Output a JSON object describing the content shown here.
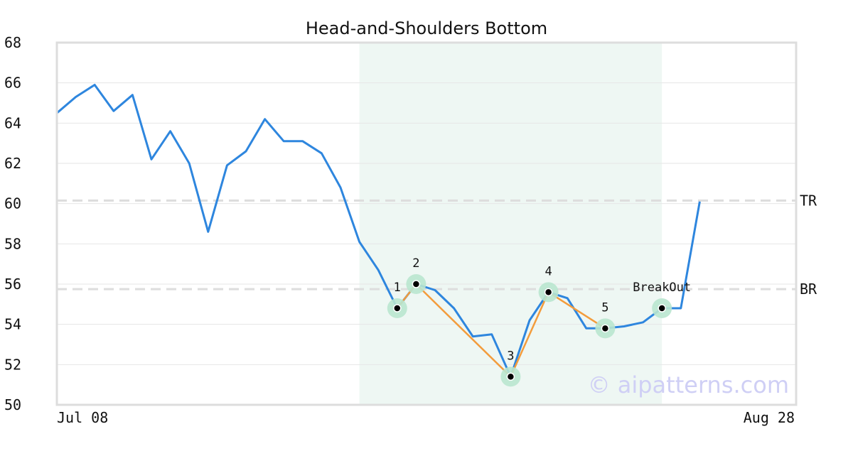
{
  "chart_data": {
    "type": "line",
    "title": "Head-and-Shoulders Bottom",
    "xlabel": "",
    "ylabel": "",
    "ylim": [
      50,
      68
    ],
    "y_ticks": [
      50,
      52,
      54,
      56,
      58,
      60,
      62,
      64,
      66,
      68
    ],
    "x_tick_labels": [
      "Jul 08",
      "Aug 28"
    ],
    "grid": true,
    "series": [
      {
        "color": "#2e86de",
        "values": [
          64.5,
          65.3,
          65.9,
          64.6,
          65.4,
          62.2,
          63.6,
          62.0,
          58.6,
          61.9,
          62.6,
          64.2,
          63.1,
          63.1,
          62.5,
          60.8,
          58.1,
          56.7,
          54.8,
          56.0,
          55.7,
          54.8,
          53.4,
          53.5,
          51.4,
          54.2,
          55.6,
          55.3,
          53.8,
          53.8,
          53.9,
          54.1,
          54.8,
          54.8,
          60.1
        ]
      }
    ],
    "shaded_region": {
      "from_index": 16,
      "to_index": 32,
      "color": "#eef7f3"
    },
    "horizontal_lines": [
      {
        "label": "TR",
        "value": 60.15
      },
      {
        "label": "BR",
        "value": 55.75
      }
    ],
    "pattern_points": [
      {
        "label": "1",
        "index": 18,
        "value": 54.8
      },
      {
        "label": "2",
        "index": 19,
        "value": 56.0
      },
      {
        "label": "3",
        "index": 24,
        "value": 51.4
      },
      {
        "label": "4",
        "index": 26,
        "value": 55.6
      },
      {
        "label": "5",
        "index": 29,
        "value": 53.8
      },
      {
        "label": "BreakOut",
        "index": 32,
        "value": 54.8
      }
    ],
    "pattern_line_color": "#f39c3c",
    "marker_halo_color": "#b9e6cf",
    "watermark": "© aipatterns.com"
  }
}
